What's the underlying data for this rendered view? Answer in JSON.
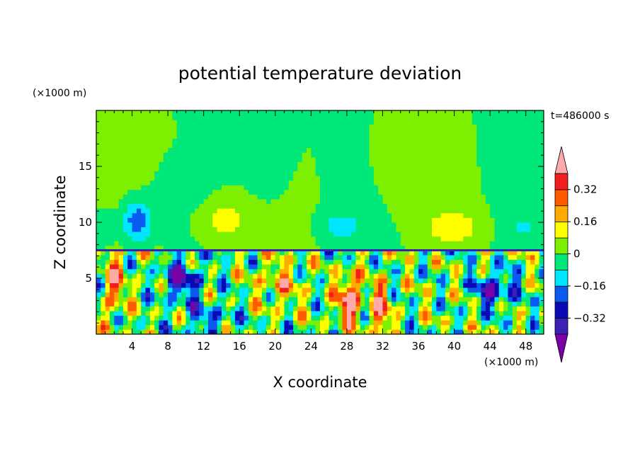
{
  "chart_data": {
    "type": "heatmap",
    "title": "potential temperature deviation",
    "xlabel": "X coordinate",
    "ylabel": "Z coordinate",
    "x_unit": "(×1000 m)",
    "y_unit": "(×1000 m)",
    "time_label": "t=486000 s",
    "xlim": [
      0,
      50
    ],
    "ylim": [
      0,
      20
    ],
    "x_ticks": [
      4,
      8,
      12,
      16,
      20,
      24,
      28,
      32,
      36,
      40,
      44,
      48
    ],
    "x_tick_labels": [
      "4",
      "8",
      "12",
      "16",
      "20",
      "24",
      "28",
      "32",
      "36",
      "40",
      "44",
      "48"
    ],
    "y_ticks": [
      5,
      10,
      15
    ],
    "y_tick_labels": [
      "5",
      "10",
      "15"
    ],
    "colorbar": {
      "levels": [
        -0.4,
        -0.32,
        -0.24,
        -0.16,
        -0.08,
        0,
        0.08,
        0.16,
        0.24,
        0.32,
        0.4
      ],
      "tick_values": [
        -0.32,
        -0.16,
        0,
        0.16,
        0.32
      ],
      "tick_labels": [
        "−0.32",
        "−0.16",
        "0",
        "0.16",
        "0.32"
      ],
      "colors": [
        "#7a00a8",
        "#3c1fb4",
        "#0a0ab4",
        "#0a5af0",
        "#00e6ff",
        "#00e87a",
        "#7cf000",
        "#ffff00",
        "#ffaa00",
        "#ff5a00",
        "#f01e1e",
        "#ffaaaa"
      ],
      "extend": "both"
    },
    "description_regions": {
      "upper_layer_pattern": [
        "green",
        "cyan",
        "yellow",
        "green",
        "cyan",
        "yellow",
        "green"
      ],
      "boundary_height": 7.5
    }
  }
}
